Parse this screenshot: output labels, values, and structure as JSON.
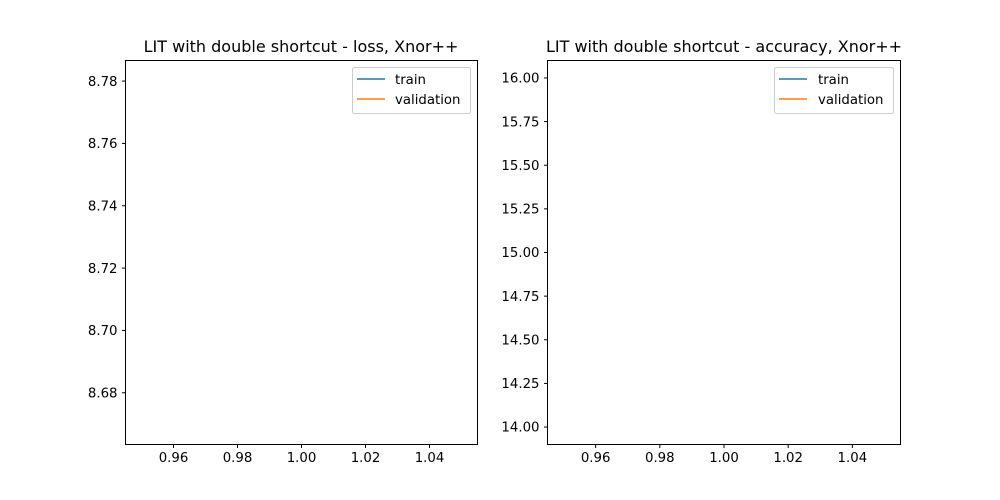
{
  "chart_data": [
    {
      "type": "line",
      "title": "LIT with double shortcut - loss, Xnor++",
      "xlabel": "",
      "ylabel": "",
      "xlim": [
        0.945,
        1.055
      ],
      "ylim": [
        8.6634,
        8.7866
      ],
      "xticks": [
        0.96,
        0.98,
        1.0,
        1.02,
        1.04
      ],
      "xtick_labels": [
        "0.96",
        "0.98",
        "1.00",
        "1.02",
        "1.04"
      ],
      "yticks": [
        8.68,
        8.7,
        8.72,
        8.74,
        8.76,
        8.78
      ],
      "ytick_labels": [
        "8.68",
        "8.70",
        "8.72",
        "8.74",
        "8.76",
        "8.78"
      ],
      "legend_position": "upper right",
      "series": [
        {
          "name": "train",
          "color": "#1f77b4",
          "x": [],
          "y": []
        },
        {
          "name": "validation",
          "color": "#ff7f0e",
          "x": [],
          "y": []
        }
      ]
    },
    {
      "type": "line",
      "title": "LIT with double shortcut - accuracy, Xnor++",
      "xlabel": "",
      "ylabel": "",
      "xlim": [
        0.945,
        1.055
      ],
      "ylim": [
        13.9,
        16.1
      ],
      "xticks": [
        0.96,
        0.98,
        1.0,
        1.02,
        1.04
      ],
      "xtick_labels": [
        "0.96",
        "0.98",
        "1.00",
        "1.02",
        "1.04"
      ],
      "yticks": [
        14.0,
        14.25,
        14.5,
        14.75,
        15.0,
        15.25,
        15.5,
        15.75,
        16.0
      ],
      "ytick_labels": [
        "14.00",
        "14.25",
        "14.50",
        "14.75",
        "15.00",
        "15.25",
        "15.50",
        "15.75",
        "16.00"
      ],
      "legend_position": "upper right",
      "series": [
        {
          "name": "train",
          "color": "#1f77b4",
          "x": [],
          "y": []
        },
        {
          "name": "validation",
          "color": "#ff7f0e",
          "x": [],
          "y": []
        }
      ]
    }
  ]
}
